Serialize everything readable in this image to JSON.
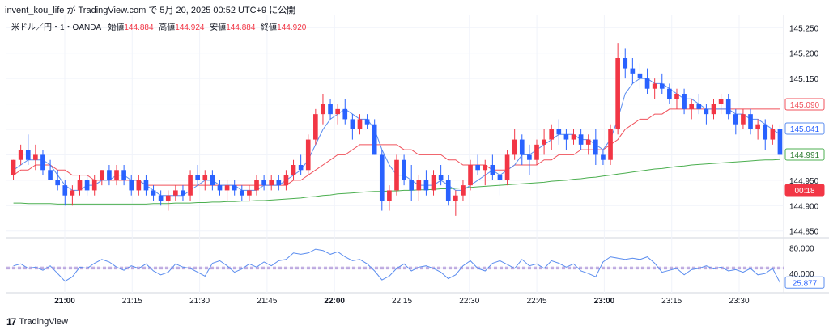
{
  "caption": "invent_kou_life が TradingView.com で 5月 20, 2025 00:52 UTC+9 に公開",
  "footer": {
    "brand": "TradingView"
  },
  "header": {
    "symbol": "米ドル／円・1・OANDA",
    "open_label": "始値",
    "open": "144.884",
    "high_label": "高値",
    "high": "144.924",
    "low_label": "安値",
    "low": "144.884",
    "close_label": "終値",
    "close": "144.920"
  },
  "price_tags": [
    {
      "value": "145.090",
      "style": "outline-red"
    },
    {
      "value": "145.041",
      "style": "outline-blue"
    },
    {
      "value": "144.991",
      "style": "outline-green"
    },
    {
      "value": "00:18",
      "style": "solid-red"
    }
  ],
  "rsi_tag": {
    "value": "25.877"
  },
  "colors": {
    "up": "#f23645",
    "down": "#2962ff",
    "ma_fast": "#5b8def",
    "ma_mid": "#f0515b",
    "ma_slow": "#4caf50",
    "rsi": "#5b8def",
    "band": "#b39ddb"
  },
  "chart_data": [
    {
      "type": "candlestick",
      "y_ticks": [
        145.25,
        145.2,
        145.15,
        145.1,
        145.05,
        145.0,
        144.95,
        144.9,
        144.85
      ],
      "y_tick_labels": [
        "145.250",
        "145.200",
        "145.150",
        "145.100",
        "145.050",
        "145.000",
        "144.950",
        "144.900",
        "144.850"
      ],
      "ylim": [
        144.84,
        145.26
      ],
      "x_ticks": [
        "21:00",
        "21:15",
        "21:30",
        "21:45",
        "22:00",
        "22:15",
        "22:30",
        "22:45",
        "23:00",
        "23:15",
        "23:30"
      ],
      "x_tick_bold": [
        true,
        false,
        false,
        false,
        true,
        false,
        false,
        false,
        true,
        false,
        false
      ],
      "candles": [
        [
          144.96,
          144.99,
          144.95,
          144.99
        ],
        [
          144.99,
          145.02,
          144.98,
          145.01
        ],
        [
          145.01,
          145.04,
          144.98,
          144.99
        ],
        [
          144.99,
          145.02,
          144.97,
          145.0
        ],
        [
          145.0,
          145.01,
          144.96,
          144.97
        ],
        [
          144.97,
          144.99,
          144.95,
          144.95
        ],
        [
          144.95,
          144.97,
          144.93,
          144.94
        ],
        [
          144.94,
          144.95,
          144.9,
          144.92
        ],
        [
          144.92,
          144.94,
          144.9,
          144.93
        ],
        [
          144.93,
          144.96,
          144.92,
          144.95
        ],
        [
          144.95,
          144.96,
          144.92,
          144.93
        ],
        [
          144.93,
          144.96,
          144.92,
          144.95
        ],
        [
          144.95,
          144.97,
          144.94,
          144.97
        ],
        [
          144.97,
          144.98,
          144.94,
          144.95
        ],
        [
          144.95,
          144.98,
          144.94,
          144.97
        ],
        [
          144.97,
          144.98,
          144.94,
          144.95
        ],
        [
          144.95,
          144.96,
          144.92,
          144.93
        ],
        [
          144.93,
          144.96,
          144.92,
          144.95
        ],
        [
          144.95,
          144.96,
          144.92,
          144.93
        ],
        [
          144.93,
          144.94,
          144.91,
          144.92
        ],
        [
          144.92,
          144.93,
          144.9,
          144.91
        ],
        [
          144.91,
          144.93,
          144.89,
          144.92
        ],
        [
          144.92,
          144.94,
          144.91,
          144.93
        ],
        [
          144.93,
          144.94,
          144.91,
          144.92
        ],
        [
          144.92,
          144.97,
          144.91,
          144.96
        ],
        [
          144.96,
          144.98,
          144.94,
          144.95
        ],
        [
          144.95,
          144.97,
          144.93,
          144.96
        ],
        [
          144.96,
          144.97,
          144.93,
          144.94
        ],
        [
          144.94,
          144.95,
          144.92,
          144.93
        ],
        [
          144.93,
          144.95,
          144.91,
          144.94
        ],
        [
          144.94,
          144.95,
          144.92,
          144.93
        ],
        [
          144.93,
          144.94,
          144.91,
          144.92
        ],
        [
          144.92,
          144.94,
          144.91,
          144.93
        ],
        [
          144.93,
          144.96,
          144.92,
          144.95
        ],
        [
          144.95,
          144.96,
          144.93,
          144.94
        ],
        [
          144.94,
          144.96,
          144.93,
          144.95
        ],
        [
          144.95,
          144.96,
          144.93,
          144.94
        ],
        [
          144.94,
          144.97,
          144.93,
          144.96
        ],
        [
          144.96,
          144.99,
          144.95,
          144.98
        ],
        [
          144.98,
          145.0,
          144.96,
          144.97
        ],
        [
          144.97,
          145.04,
          144.96,
          145.03
        ],
        [
          145.03,
          145.09,
          145.02,
          145.08
        ],
        [
          145.08,
          145.12,
          145.06,
          145.1
        ],
        [
          145.1,
          145.11,
          145.07,
          145.08
        ],
        [
          145.08,
          145.1,
          145.06,
          145.09
        ],
        [
          145.09,
          145.11,
          145.06,
          145.07
        ],
        [
          145.07,
          145.08,
          145.03,
          145.05
        ],
        [
          145.05,
          145.08,
          145.04,
          145.07
        ],
        [
          145.07,
          145.08,
          145.05,
          145.06
        ],
        [
          145.06,
          145.07,
          145.0,
          145.0
        ],
        [
          145.0,
          145.01,
          144.89,
          144.91
        ],
        [
          144.91,
          144.94,
          144.89,
          144.93
        ],
        [
          144.93,
          145.0,
          144.92,
          144.99
        ],
        [
          144.99,
          145.0,
          144.94,
          144.95
        ],
        [
          144.95,
          144.98,
          144.91,
          144.93
        ],
        [
          144.93,
          144.96,
          144.91,
          144.95
        ],
        [
          144.95,
          144.97,
          144.92,
          144.93
        ],
        [
          144.93,
          144.97,
          144.92,
          144.96
        ],
        [
          144.96,
          144.98,
          144.94,
          144.95
        ],
        [
          144.95,
          144.96,
          144.9,
          144.91
        ],
        [
          144.91,
          144.93,
          144.88,
          144.92
        ],
        [
          144.92,
          144.95,
          144.91,
          144.94
        ],
        [
          144.94,
          144.99,
          144.93,
          144.98
        ],
        [
          144.98,
          145.0,
          144.96,
          144.97
        ],
        [
          144.97,
          144.99,
          144.94,
          144.98
        ],
        [
          144.98,
          145.0,
          144.95,
          144.96
        ],
        [
          144.96,
          144.97,
          144.92,
          144.95
        ],
        [
          144.95,
          145.01,
          144.94,
          145.0
        ],
        [
          145.0,
          145.05,
          144.99,
          145.03
        ],
        [
          145.03,
          145.04,
          144.98,
          145.0
        ],
        [
          145.0,
          145.02,
          144.96,
          144.99
        ],
        [
          144.99,
          145.03,
          144.98,
          145.02
        ],
        [
          145.02,
          145.05,
          145.0,
          145.03
        ],
        [
          145.03,
          145.06,
          145.01,
          145.05
        ],
        [
          145.05,
          145.07,
          145.02,
          145.04
        ],
        [
          145.04,
          145.05,
          145.01,
          145.03
        ],
        [
          145.03,
          145.05,
          145.02,
          145.04
        ],
        [
          145.04,
          145.05,
          145.01,
          145.02
        ],
        [
          145.02,
          145.04,
          145.0,
          145.03
        ],
        [
          145.03,
          145.05,
          144.98,
          145.0
        ],
        [
          145.0,
          145.01,
          144.98,
          144.99
        ],
        [
          144.99,
          145.06,
          144.98,
          145.05
        ],
        [
          145.05,
          145.22,
          145.04,
          145.19
        ],
        [
          145.19,
          145.21,
          145.15,
          145.17
        ],
        [
          145.17,
          145.19,
          145.14,
          145.16
        ],
        [
          145.16,
          145.18,
          145.13,
          145.15
        ],
        [
          145.15,
          145.17,
          145.12,
          145.13
        ],
        [
          145.13,
          145.15,
          145.11,
          145.14
        ],
        [
          145.14,
          145.16,
          145.12,
          145.13
        ],
        [
          145.13,
          145.14,
          145.1,
          145.11
        ],
        [
          145.11,
          145.13,
          145.09,
          145.12
        ],
        [
          145.12,
          145.13,
          145.08,
          145.09
        ],
        [
          145.09,
          145.11,
          145.07,
          145.1
        ],
        [
          145.1,
          145.12,
          145.08,
          145.09
        ],
        [
          145.09,
          145.1,
          145.06,
          145.08
        ],
        [
          145.08,
          145.11,
          145.07,
          145.1
        ],
        [
          145.1,
          145.12,
          145.08,
          145.11
        ],
        [
          145.11,
          145.12,
          145.07,
          145.08
        ],
        [
          145.08,
          145.09,
          145.04,
          145.06
        ],
        [
          145.06,
          145.09,
          145.05,
          145.08
        ],
        [
          145.08,
          145.09,
          145.04,
          145.05
        ],
        [
          145.05,
          145.07,
          145.03,
          145.06
        ],
        [
          145.06,
          145.07,
          145.01,
          145.03
        ],
        [
          145.03,
          145.06,
          145.02,
          145.05
        ],
        [
          145.05,
          145.06,
          144.99,
          145.0
        ]
      ],
      "ma_fast": [
        144.97,
        144.98,
        144.99,
        144.99,
        144.99,
        144.98,
        144.96,
        144.94,
        144.93,
        144.93,
        144.94,
        144.94,
        144.95,
        144.95,
        144.96,
        144.96,
        144.95,
        144.95,
        144.94,
        144.93,
        144.92,
        144.92,
        144.92,
        144.92,
        144.93,
        144.94,
        144.95,
        144.95,
        144.94,
        144.94,
        144.94,
        144.93,
        144.93,
        144.93,
        144.94,
        144.94,
        144.94,
        144.95,
        144.96,
        144.97,
        144.99,
        145.02,
        145.05,
        145.07,
        145.08,
        145.09,
        145.08,
        145.07,
        145.07,
        145.05,
        145.01,
        144.98,
        144.96,
        144.96,
        144.95,
        144.94,
        144.94,
        144.94,
        144.95,
        144.94,
        144.93,
        144.93,
        144.94,
        144.95,
        144.96,
        144.97,
        144.96,
        144.97,
        144.98,
        145.0,
        145.0,
        145.01,
        145.02,
        145.03,
        145.04,
        145.04,
        145.04,
        145.03,
        145.03,
        145.02,
        145.01,
        145.03,
        145.07,
        145.12,
        145.14,
        145.15,
        145.15,
        145.14,
        145.14,
        145.13,
        145.12,
        145.11,
        145.11,
        145.1,
        145.09,
        145.09,
        145.09,
        145.09,
        145.08,
        145.08,
        145.07,
        145.07,
        145.06,
        145.05,
        145.04
      ],
      "ma_mid": [
        144.96,
        144.97,
        144.97,
        144.98,
        144.98,
        144.98,
        144.97,
        144.97,
        144.96,
        144.96,
        144.96,
        144.95,
        144.95,
        144.95,
        144.95,
        144.95,
        144.95,
        144.95,
        144.94,
        144.94,
        144.94,
        144.94,
        144.94,
        144.94,
        144.94,
        144.94,
        144.94,
        144.94,
        144.94,
        144.94,
        144.94,
        144.94,
        144.94,
        144.94,
        144.94,
        144.94,
        144.94,
        144.94,
        144.95,
        144.95,
        144.96,
        144.97,
        144.98,
        144.99,
        145.0,
        145.0,
        145.01,
        145.02,
        145.02,
        145.02,
        145.02,
        145.02,
        145.02,
        145.01,
        145.01,
        145.0,
        145.0,
        145.0,
        145.0,
        144.99,
        144.99,
        144.98,
        144.98,
        144.98,
        144.98,
        144.97,
        144.97,
        144.97,
        144.98,
        144.98,
        144.98,
        144.98,
        144.99,
        144.99,
        145.0,
        145.0,
        145.0,
        145.01,
        145.01,
        145.01,
        145.01,
        145.02,
        145.03,
        145.05,
        145.06,
        145.07,
        145.07,
        145.08,
        145.08,
        145.09,
        145.09,
        145.09,
        145.09,
        145.09,
        145.09,
        145.09,
        145.09,
        145.09,
        145.09,
        145.09,
        145.09,
        145.09,
        145.09,
        145.09,
        145.09
      ],
      "ma_slow": [
        144.905,
        144.905,
        144.904,
        144.904,
        144.904,
        144.904,
        144.903,
        144.903,
        144.903,
        144.903,
        144.903,
        144.903,
        144.903,
        144.903,
        144.903,
        144.903,
        144.903,
        144.903,
        144.903,
        144.904,
        144.904,
        144.904,
        144.905,
        144.905,
        144.905,
        144.906,
        144.906,
        144.907,
        144.907,
        144.908,
        144.908,
        144.909,
        144.909,
        144.91,
        144.91,
        144.911,
        144.912,
        144.913,
        144.914,
        144.915,
        144.917,
        144.918,
        144.92,
        144.921,
        144.923,
        144.924,
        144.925,
        144.926,
        144.927,
        144.928,
        144.928,
        144.929,
        144.929,
        144.93,
        144.93,
        144.931,
        144.931,
        144.932,
        144.933,
        144.933,
        144.934,
        144.935,
        144.936,
        144.937,
        144.938,
        144.939,
        144.94,
        144.941,
        144.942,
        144.943,
        144.944,
        144.945,
        144.946,
        144.948,
        144.949,
        144.95,
        144.952,
        144.953,
        144.955,
        144.956,
        144.958,
        144.96,
        144.962,
        144.964,
        144.966,
        144.968,
        144.97,
        144.972,
        144.973,
        144.975,
        144.977,
        144.978,
        144.98,
        144.981,
        144.982,
        144.983,
        144.984,
        144.985,
        144.986,
        144.987,
        144.988,
        144.989,
        144.99,
        144.99,
        144.991
      ]
    },
    {
      "type": "line",
      "name": "",
      "y_ticks": [
        80.0,
        40.0
      ],
      "y_tick_labels": [
        "80.000",
        "40.000"
      ],
      "ylim": [
        15,
        92
      ],
      "band_levels": [
        50,
        47
      ],
      "values": [
        52,
        55,
        48,
        50,
        45,
        52,
        40,
        28,
        35,
        50,
        48,
        56,
        62,
        58,
        50,
        45,
        52,
        48,
        55,
        44,
        38,
        42,
        55,
        50,
        48,
        42,
        36,
        56,
        60,
        52,
        42,
        47,
        55,
        50,
        58,
        52,
        60,
        62,
        72,
        70,
        72,
        78,
        76,
        70,
        74,
        66,
        60,
        62,
        55,
        44,
        30,
        36,
        48,
        55,
        44,
        50,
        52,
        48,
        42,
        32,
        38,
        52,
        60,
        48,
        44,
        56,
        60,
        54,
        48,
        62,
        52,
        55,
        48,
        60,
        56,
        50,
        55,
        44,
        40,
        35,
        58,
        66,
        64,
        62,
        64,
        62,
        66,
        56,
        42,
        45,
        48,
        38,
        46,
        48,
        52,
        47,
        50,
        44,
        46,
        42,
        48,
        38,
        40,
        48,
        26
      ]
    }
  ]
}
